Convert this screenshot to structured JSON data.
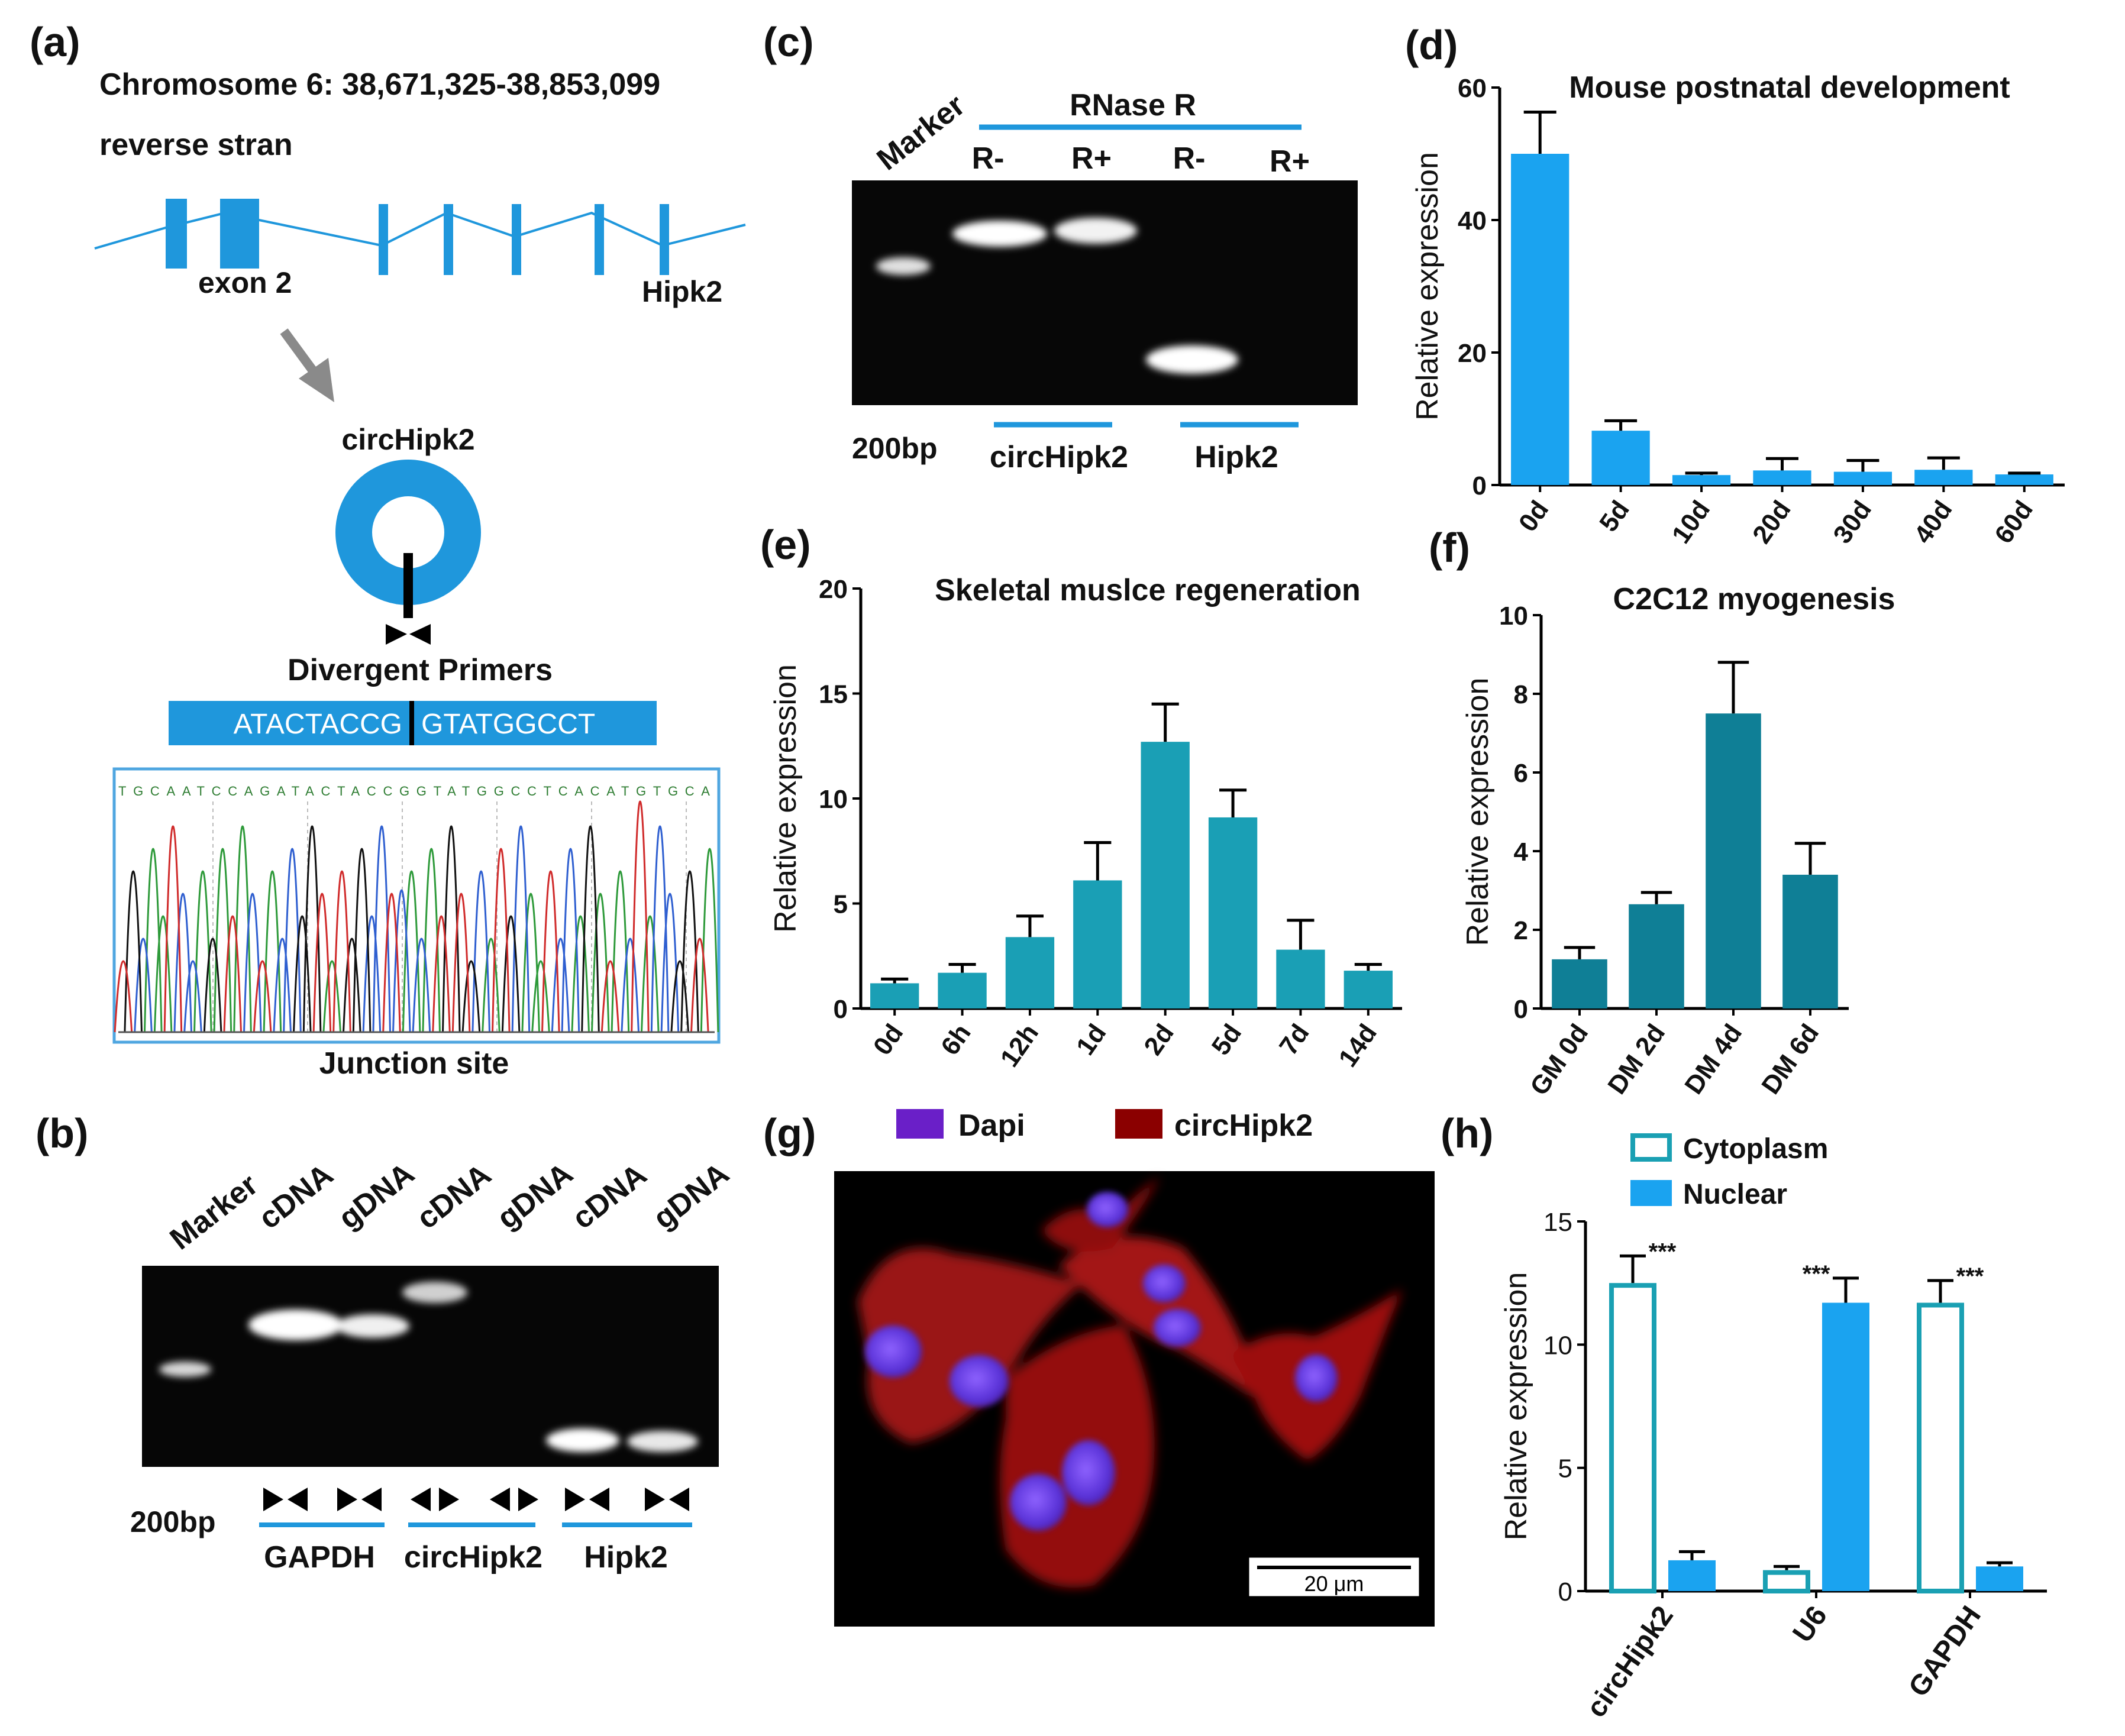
{
  "colors": {
    "blue": "#1f97dc",
    "teal": "#1a9fb5",
    "darkteal": "#0f7f96",
    "bright": "#1aa3f0",
    "outline": "#1aa0b3",
    "dapi": "#6a1fc8",
    "circ": "#8b0000"
  },
  "panels": {
    "a": {
      "letter": "(a)",
      "chrom": "Chromosome 6: 38,671,325-38,853,099",
      "strand": "reverse stran",
      "exon": "exon 2",
      "gene": "Hipk2",
      "circ": "circHipk2",
      "primers": "Divergent Primers",
      "seq_left": "ATACTACCG",
      "seq_right": "GTATGGCCT",
      "trace_seq": "TGCAATCCAGATACTACCGGTATGGCCTCACATGTGCA",
      "junction": "Junction site"
    },
    "b": {
      "letter": "(b)",
      "lanes": [
        "Marker",
        "cDNA",
        "gDNA",
        "cDNA",
        "gDNA",
        "cDNA",
        "gDNA"
      ],
      "size": "200bp",
      "groups": [
        "GAPDH",
        "circHipk2",
        "Hipk2"
      ]
    },
    "c": {
      "letter": "(c)",
      "marker": "Marker",
      "rnase": "RNase R",
      "lanes": [
        "R-",
        "R+",
        "R-",
        "R+"
      ],
      "size": "200bp",
      "groups": [
        "circHipk2",
        "Hipk2"
      ]
    },
    "g": {
      "letter": "(g)",
      "legend": [
        "Dapi",
        "circHipk2"
      ],
      "scale": "20 μm"
    },
    "h": {
      "letter": "(h)"
    }
  },
  "chart_data": [
    {
      "id": "d",
      "letter": "(d)",
      "type": "bar",
      "title": "Mouse postnatal development",
      "ylabel": "Relative expression",
      "ylim": [
        0,
        60
      ],
      "yticks": [
        0,
        20,
        40,
        60
      ],
      "categories": [
        "0d",
        "5d",
        "10d",
        "20d",
        "30d",
        "40d",
        "60d"
      ],
      "values": [
        50,
        8.2,
        1.5,
        2.2,
        2.0,
        2.3,
        1.6
      ],
      "errors": [
        6.3,
        1.5,
        0.3,
        1.8,
        1.7,
        1.8,
        0.2
      ]
    },
    {
      "id": "e",
      "letter": "(e)",
      "type": "bar",
      "title": "Skeletal muslce regeneration",
      "ylabel": "Relative expression",
      "ylim": [
        0,
        20
      ],
      "yticks": [
        0,
        5,
        10,
        15,
        20
      ],
      "categories": [
        "0d",
        "6h",
        "12h",
        "1d",
        "2d",
        "5d",
        "7d",
        "14d"
      ],
      "values": [
        1.2,
        1.7,
        3.4,
        6.1,
        12.7,
        9.1,
        2.8,
        1.8
      ],
      "errors": [
        0.2,
        0.4,
        1.0,
        1.8,
        1.8,
        1.3,
        1.4,
        0.3
      ]
    },
    {
      "id": "f",
      "letter": "(f)",
      "type": "bar",
      "title": "C2C12 myogenesis",
      "ylabel": "Relative expression",
      "ylim": [
        0,
        10
      ],
      "yticks": [
        0,
        2,
        4,
        6,
        8,
        10
      ],
      "categories": [
        "GM 0d",
        "DM 2d",
        "DM 4d",
        "DM 6d"
      ],
      "values": [
        1.25,
        2.65,
        7.5,
        3.4
      ],
      "errors": [
        0.3,
        0.3,
        1.3,
        0.8
      ]
    },
    {
      "id": "h",
      "letter": "(h)",
      "type": "bar",
      "ylabel": "Relative expression",
      "ylim": [
        0,
        15
      ],
      "yticks": [
        0,
        5,
        10,
        15
      ],
      "categories": [
        "circHipk2",
        "U6",
        "GAPDH"
      ],
      "series": [
        {
          "name": "Cytoplasm",
          "values": [
            12.5,
            0.85,
            11.7
          ],
          "errors": [
            1.1,
            0.15,
            0.9
          ]
        },
        {
          "name": "Nuclear",
          "values": [
            1.25,
            11.7,
            1.0
          ],
          "errors": [
            0.35,
            1.0,
            0.15
          ]
        }
      ],
      "annotations": [
        "***",
        "***",
        "***"
      ]
    }
  ]
}
